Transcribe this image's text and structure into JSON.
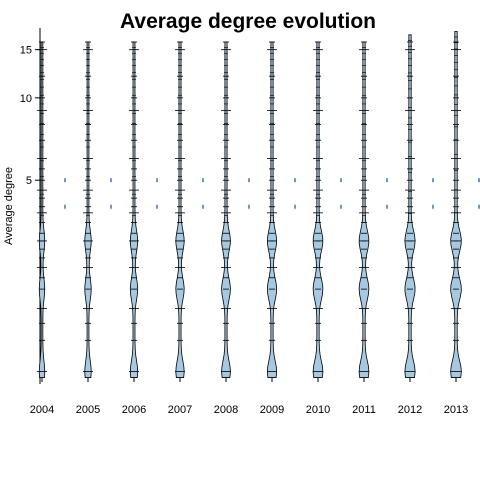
{
  "chart_data": {
    "type": "beanplot",
    "title": "Average degree evolution",
    "xlabel": "",
    "ylabel": "Average degree",
    "y_scale": "log",
    "categories": [
      "2004",
      "2005",
      "2006",
      "2007",
      "2008",
      "2009",
      "2010",
      "2011",
      "2012",
      "2013"
    ],
    "yticks": [
      {
        "value": 5,
        "label": "5"
      },
      {
        "value": 10,
        "label": "10"
      },
      {
        "value": 15,
        "label": "15"
      }
    ],
    "ylim": [
      0.9,
      18
    ],
    "bean_modes": [
      1,
      2,
      3
    ],
    "mode_width_by_year": [
      0.45,
      0.55,
      0.65,
      0.75,
      0.8,
      0.85,
      0.9,
      0.9,
      0.95,
      1.0
    ],
    "observation_values": [
      1,
      1.3,
      1.5,
      1.7,
      2,
      2.2,
      2.4,
      2.6,
      2.8,
      3,
      3.2,
      3.5,
      3.8,
      4,
      4.3,
      4.6,
      5,
      5.5,
      6,
      7,
      8,
      9,
      10,
      12,
      15,
      16
    ],
    "max_value_by_year": [
      16,
      16,
      16,
      16,
      16,
      16,
      16,
      16,
      17,
      17.5
    ],
    "reference_line_values": [
      4,
      5
    ],
    "colors": {
      "bean_fill": "#a6c8e0",
      "bean_line": "#000000",
      "reference_tick": "#2b6cb0",
      "axis": "#000000"
    }
  }
}
